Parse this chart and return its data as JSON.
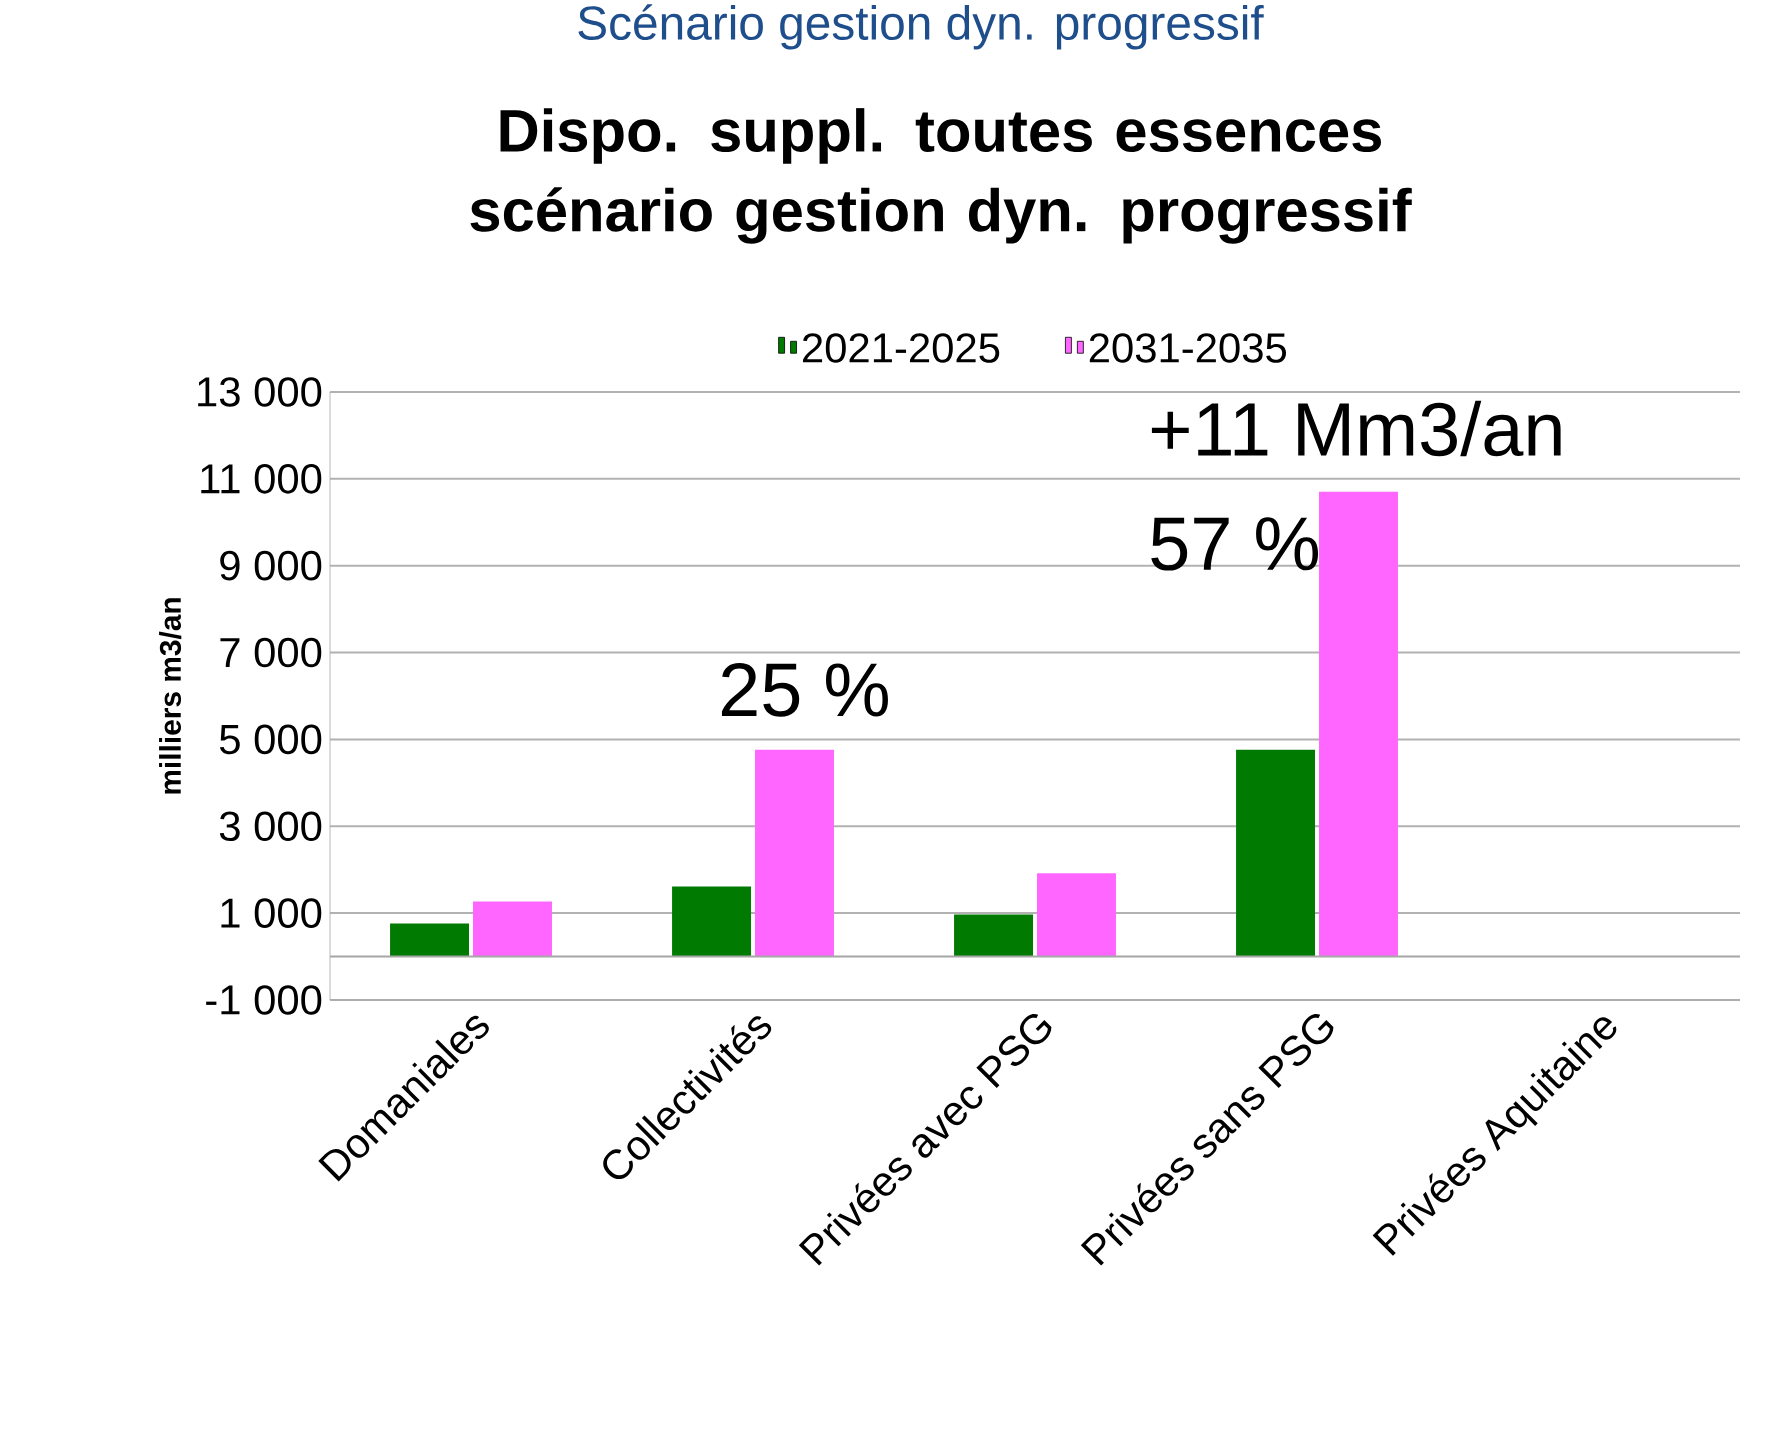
{
  "chart_data": {
    "type": "bar",
    "title": "Dispo. suppl. toutes essences\nscénario gestion dyn. progressif",
    "ylabel": "milliers m3/an",
    "categories": [
      "Domaniales",
      "Collectivités",
      "Privées avec PSG",
      "Privées sans PSG",
      "Privées Aquitaine"
    ],
    "series": [
      {
        "name": "2021-2025",
        "color": "#007a00",
        "values": [
          760,
          1610,
          970,
          4760,
          null
        ]
      },
      {
        "name": "2031-2035",
        "color": "#ff66ff",
        "values": [
          1270,
          4760,
          1920,
          10700,
          null
        ]
      }
    ],
    "ylim": [
      -1000,
      13000
    ],
    "yticks": [
      {
        "value": -1000,
        "label": "-1 000"
      },
      {
        "value": 1000,
        "label": "1 000"
      },
      {
        "value": 3000,
        "label": "3 000"
      },
      {
        "value": 5000,
        "label": "5 000"
      },
      {
        "value": 7000,
        "label": "7 000"
      },
      {
        "value": 9000,
        "label": "9 000"
      },
      {
        "value": 11000,
        "label": "11 000"
      },
      {
        "value": 13000,
        "label": "13 000"
      }
    ],
    "grid": "y",
    "legend": "top",
    "ref_lines": [
      {
        "axis": "y",
        "value": 0
      }
    ],
    "annotations": [
      "Scénario gestion dyn. progressif",
      "25 %",
      "+11 Mm3/an",
      "57 %"
    ]
  }
}
